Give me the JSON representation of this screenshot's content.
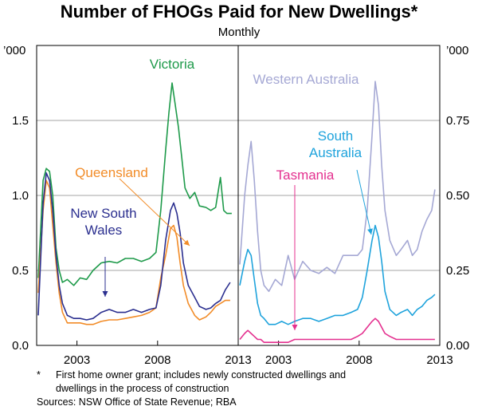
{
  "title": "Number of FHOGs Paid for New Dwellings*",
  "subtitle": "Monthly",
  "footnote_star": "*",
  "footnote_lines": [
    "First home owner grant; includes newly constructed dwellings and",
    "dwellings in the process of construction"
  ],
  "sources": "Sources: NSW Office of State Revenue; RBA",
  "chart_data": [
    {
      "type": "line",
      "panel": "left",
      "unit_label": "’000",
      "ylim": [
        0,
        2.0
      ],
      "yticks": [
        "0.0",
        "0.5",
        "1.0",
        "1.5"
      ],
      "ytick_values": [
        0,
        0.5,
        1.0,
        1.5
      ],
      "xlim": [
        2000.5,
        2013
      ],
      "xtick_labels": [
        "2003",
        "2008",
        "2013"
      ],
      "xtick_values": [
        2003,
        2008,
        2013
      ],
      "grid": true,
      "series": [
        {
          "name": "Victoria",
          "color": "#1e9a4a",
          "x": [
            2000.6,
            2000.9,
            2001.1,
            2001.3,
            2001.5,
            2001.7,
            2001.9,
            2002.1,
            2002.4,
            2002.8,
            2003.2,
            2003.6,
            2004.0,
            2004.5,
            2005.0,
            2005.5,
            2006.0,
            2006.5,
            2007.0,
            2007.5,
            2007.9,
            2008.2,
            2008.5,
            2008.7,
            2008.9,
            2009.1,
            2009.3,
            2009.5,
            2009.7,
            2010.0,
            2010.3,
            2010.6,
            2011.0,
            2011.3,
            2011.6,
            2011.9,
            2012.1,
            2012.3,
            2012.6
          ],
          "y": [
            0.45,
            1.1,
            1.18,
            1.16,
            1.0,
            0.65,
            0.5,
            0.42,
            0.44,
            0.4,
            0.45,
            0.44,
            0.5,
            0.55,
            0.56,
            0.55,
            0.58,
            0.58,
            0.56,
            0.58,
            0.62,
            0.9,
            1.3,
            1.55,
            1.75,
            1.6,
            1.45,
            1.25,
            1.05,
            0.98,
            1.02,
            0.93,
            0.92,
            0.9,
            0.92,
            1.12,
            0.9,
            0.88,
            0.88
          ]
        },
        {
          "name": "Queensland",
          "color": "#f28c28",
          "x": [
            2000.6,
            2000.9,
            2001.1,
            2001.3,
            2001.5,
            2001.7,
            2001.9,
            2002.1,
            2002.4,
            2002.8,
            2003.2,
            2003.6,
            2004.0,
            2004.5,
            2005.0,
            2005.5,
            2006.0,
            2006.5,
            2007.0,
            2007.5,
            2007.9,
            2008.2,
            2008.5,
            2008.8,
            2009.0,
            2009.2,
            2009.4,
            2009.6,
            2009.9,
            2010.3,
            2010.6,
            2011.0,
            2011.3,
            2011.6,
            2011.9,
            2012.2,
            2012.5
          ],
          "y": [
            0.35,
            0.9,
            1.1,
            1.05,
            0.8,
            0.55,
            0.35,
            0.22,
            0.15,
            0.15,
            0.15,
            0.14,
            0.14,
            0.16,
            0.17,
            0.17,
            0.18,
            0.19,
            0.2,
            0.22,
            0.25,
            0.45,
            0.6,
            0.78,
            0.8,
            0.72,
            0.55,
            0.4,
            0.28,
            0.2,
            0.17,
            0.19,
            0.22,
            0.26,
            0.28,
            0.3,
            0.3
          ]
        },
        {
          "name": "New South Wales",
          "label_lines": [
            "New South",
            "Wales"
          ],
          "color": "#2b2f8f",
          "x": [
            2000.6,
            2000.9,
            2001.1,
            2001.3,
            2001.5,
            2001.7,
            2001.9,
            2002.1,
            2002.4,
            2002.8,
            2003.2,
            2003.6,
            2004.0,
            2004.5,
            2005.0,
            2005.5,
            2006.0,
            2006.5,
            2007.0,
            2007.5,
            2007.9,
            2008.2,
            2008.5,
            2008.8,
            2009.0,
            2009.2,
            2009.4,
            2009.6,
            2009.9,
            2010.3,
            2010.6,
            2011.0,
            2011.3,
            2011.6,
            2011.9,
            2012.2,
            2012.5
          ],
          "y": [
            0.2,
            0.95,
            1.15,
            1.1,
            0.9,
            0.6,
            0.4,
            0.28,
            0.2,
            0.18,
            0.18,
            0.17,
            0.18,
            0.22,
            0.24,
            0.22,
            0.22,
            0.24,
            0.22,
            0.24,
            0.25,
            0.4,
            0.7,
            0.9,
            0.95,
            0.88,
            0.75,
            0.55,
            0.4,
            0.32,
            0.26,
            0.24,
            0.25,
            0.28,
            0.3,
            0.37,
            0.42
          ]
        }
      ],
      "annotations": [
        {
          "text": "Victoria",
          "series": "Victoria"
        },
        {
          "text": "Queensland",
          "series": "Queensland"
        },
        {
          "text": "New South Wales",
          "series": "New South Wales"
        }
      ]
    },
    {
      "type": "line",
      "panel": "right",
      "unit_label": "’000",
      "ylim": [
        0,
        1.0
      ],
      "yticks": [
        "0.00",
        "0.25",
        "0.50",
        "0.75"
      ],
      "ytick_values": [
        0,
        0.25,
        0.5,
        0.75
      ],
      "xlim": [
        2000.5,
        2013
      ],
      "xtick_labels": [
        "2003",
        "2008",
        "2013"
      ],
      "xtick_values": [
        2003,
        2008,
        2013
      ],
      "grid": true,
      "series": [
        {
          "name": "Western Australia",
          "color": "#a5a8d4",
          "x": [
            2000.6,
            2000.9,
            2001.1,
            2001.3,
            2001.5,
            2001.7,
            2001.9,
            2002.1,
            2002.4,
            2002.8,
            2003.2,
            2003.6,
            2004.0,
            2004.5,
            2005.0,
            2005.5,
            2006.0,
            2006.5,
            2007.0,
            2007.5,
            2007.9,
            2008.2,
            2008.5,
            2008.8,
            2009.0,
            2009.2,
            2009.4,
            2009.6,
            2009.9,
            2010.3,
            2010.6,
            2011.0,
            2011.3,
            2011.6,
            2011.9,
            2012.2,
            2012.5,
            2012.7
          ],
          "y": [
            0.27,
            0.5,
            0.6,
            0.68,
            0.55,
            0.38,
            0.25,
            0.2,
            0.18,
            0.22,
            0.2,
            0.3,
            0.22,
            0.28,
            0.25,
            0.24,
            0.26,
            0.24,
            0.3,
            0.3,
            0.3,
            0.32,
            0.45,
            0.7,
            0.88,
            0.8,
            0.6,
            0.45,
            0.35,
            0.3,
            0.32,
            0.35,
            0.3,
            0.32,
            0.38,
            0.42,
            0.45,
            0.52
          ]
        },
        {
          "name": "South Australia",
          "label_lines": [
            "South",
            "Australia"
          ],
          "color": "#1fa3dc",
          "x": [
            2000.6,
            2000.9,
            2001.1,
            2001.3,
            2001.5,
            2001.7,
            2001.9,
            2002.1,
            2002.4,
            2002.8,
            2003.2,
            2003.6,
            2004.0,
            2004.5,
            2005.0,
            2005.5,
            2006.0,
            2006.5,
            2007.0,
            2007.5,
            2007.9,
            2008.2,
            2008.5,
            2008.8,
            2009.0,
            2009.2,
            2009.4,
            2009.6,
            2009.9,
            2010.3,
            2010.6,
            2011.0,
            2011.3,
            2011.6,
            2011.9,
            2012.2,
            2012.5,
            2012.7
          ],
          "y": [
            0.2,
            0.28,
            0.32,
            0.3,
            0.22,
            0.14,
            0.1,
            0.09,
            0.07,
            0.07,
            0.08,
            0.07,
            0.08,
            0.09,
            0.09,
            0.08,
            0.09,
            0.1,
            0.1,
            0.11,
            0.12,
            0.16,
            0.25,
            0.35,
            0.4,
            0.36,
            0.28,
            0.18,
            0.12,
            0.1,
            0.11,
            0.12,
            0.1,
            0.12,
            0.13,
            0.15,
            0.16,
            0.17
          ]
        },
        {
          "name": "Tasmania",
          "color": "#e4308f",
          "x": [
            2000.6,
            2000.9,
            2001.1,
            2001.3,
            2001.5,
            2001.7,
            2001.9,
            2002.1,
            2002.4,
            2002.8,
            2003.2,
            2003.6,
            2004.0,
            2004.5,
            2005.0,
            2005.5,
            2006.0,
            2006.5,
            2007.0,
            2007.5,
            2007.9,
            2008.2,
            2008.5,
            2008.8,
            2009.0,
            2009.2,
            2009.4,
            2009.6,
            2009.9,
            2010.3,
            2010.6,
            2011.0,
            2011.3,
            2011.6,
            2011.9,
            2012.2,
            2012.5,
            2012.7
          ],
          "y": [
            0.02,
            0.04,
            0.05,
            0.04,
            0.03,
            0.02,
            0.02,
            0.01,
            0.01,
            0.01,
            0.01,
            0.01,
            0.02,
            0.02,
            0.02,
            0.02,
            0.02,
            0.02,
            0.02,
            0.02,
            0.03,
            0.04,
            0.06,
            0.08,
            0.09,
            0.08,
            0.06,
            0.04,
            0.03,
            0.02,
            0.02,
            0.02,
            0.02,
            0.02,
            0.02,
            0.02,
            0.02,
            0.02
          ]
        }
      ],
      "annotations": [
        {
          "text": "Western Australia",
          "series": "Western Australia"
        },
        {
          "text": "South Australia",
          "series": "South Australia"
        },
        {
          "text": "Tasmania",
          "series": "Tasmania"
        }
      ]
    }
  ]
}
